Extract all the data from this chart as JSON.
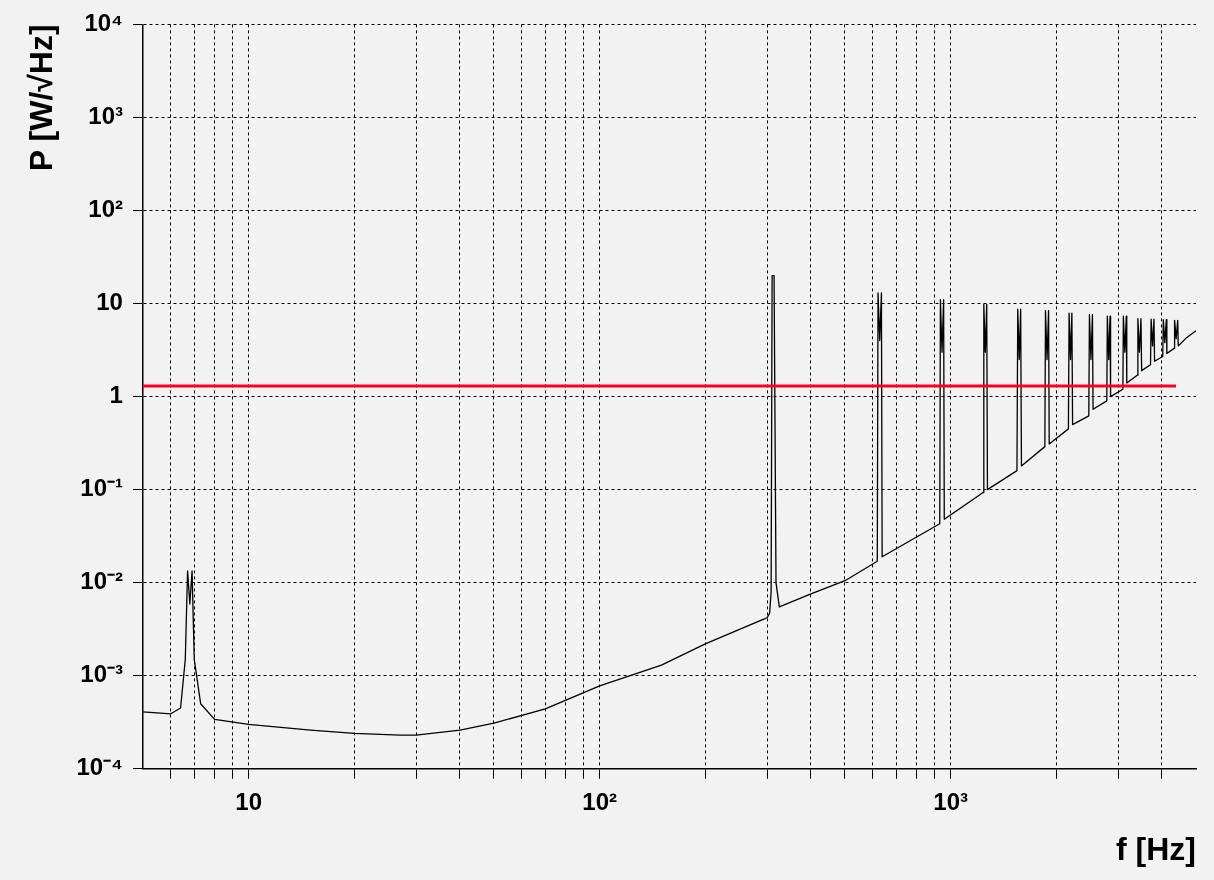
{
  "chart_data": {
    "type": "line",
    "xlabel": "f [Hz]",
    "ylabel": "P [W/√Hz]",
    "log": "xy",
    "grid": true,
    "legend": false,
    "marker": "none",
    "line_style": "solid",
    "xlim": [
      5,
      5000
    ],
    "ylim": [
      0.0001,
      10000
    ],
    "xticks": [
      {
        "value": 6,
        "label": null
      },
      {
        "value": 7,
        "label": null
      },
      {
        "value": 8,
        "label": null
      },
      {
        "value": 9,
        "label": null
      },
      {
        "value": 10,
        "label": "10"
      },
      {
        "value": 20,
        "label": null
      },
      {
        "value": 30,
        "label": null
      },
      {
        "value": 40,
        "label": null
      },
      {
        "value": 50,
        "label": null
      },
      {
        "value": 60,
        "label": null
      },
      {
        "value": 70,
        "label": null
      },
      {
        "value": 80,
        "label": null
      },
      {
        "value": 90,
        "label": null
      },
      {
        "value": 100,
        "label": "10²"
      },
      {
        "value": 200,
        "label": null
      },
      {
        "value": 300,
        "label": null
      },
      {
        "value": 400,
        "label": null
      },
      {
        "value": 500,
        "label": null
      },
      {
        "value": 600,
        "label": null
      },
      {
        "value": 700,
        "label": null
      },
      {
        "value": 800,
        "label": null
      },
      {
        "value": 900,
        "label": null
      },
      {
        "value": 1000,
        "label": "10³"
      },
      {
        "value": 2000,
        "label": null
      },
      {
        "value": 3000,
        "label": null
      },
      {
        "value": 4000,
        "label": null
      }
    ],
    "yticks": [
      {
        "value": 0.0001,
        "label": "10⁻⁴"
      },
      {
        "value": 0.001,
        "label": "10⁻³"
      },
      {
        "value": 0.01,
        "label": "10⁻²"
      },
      {
        "value": 0.1,
        "label": "10⁻¹"
      },
      1,
      10,
      {
        "value": 100,
        "label": "10²"
      },
      {
        "value": 1000,
        "label": "10³"
      },
      {
        "value": 10000,
        "label": "10⁴"
      }
    ],
    "ref_lines": [
      {
        "axis": "y",
        "value": 1.3,
        "color": "#ff0022"
      }
    ],
    "series": [
      {
        "color": "#000000",
        "x": [
          5,
          6,
          6.4,
          6.6,
          6.7,
          6.8,
          6.9,
          7.0,
          7.3,
          8,
          10,
          15,
          20,
          27,
          30,
          40,
          50,
          70,
          100,
          150,
          200,
          300,
          305,
          308,
          310,
          314,
          318,
          325,
          400,
          500,
          618,
          621,
          628,
          635,
          638,
          931,
          935,
          945,
          955,
          959,
          1237,
          1243,
          1255,
          1267,
          1273,
          1545,
          1553,
          1568,
          1583,
          1591,
          1855,
          1863,
          1882,
          1901,
          1909,
          2165,
          2175,
          2195,
          2215,
          2225,
          2475,
          2485,
          2510,
          2535,
          2545,
          2785,
          2795,
          2820,
          2845,
          2855,
          3095,
          3105,
          3135,
          3165,
          3175,
          3400,
          3415,
          3450,
          3485,
          3500,
          3710,
          3725,
          3760,
          3795,
          3810,
          4020,
          4035,
          4075,
          4115,
          4130,
          4330,
          4345,
          4390,
          4435,
          4450,
          4700,
          5000
        ],
        "values": [
          0.00041,
          0.00039,
          0.00045,
          0.0015,
          0.0134,
          0.0059,
          0.0134,
          0.0015,
          0.0005,
          0.00034,
          0.0003,
          0.00026,
          0.00024,
          0.00023,
          0.00023,
          0.00026,
          0.00031,
          0.00044,
          0.00078,
          0.0013,
          0.0022,
          0.0042,
          0.0047,
          0.008,
          20,
          20,
          0.01,
          0.0055,
          0.0076,
          0.0105,
          0.017,
          13,
          4,
          13,
          0.019,
          0.043,
          11,
          3,
          11,
          0.048,
          0.093,
          9.8,
          3,
          9.8,
          0.1,
          0.16,
          8.7,
          2.5,
          8.7,
          0.18,
          0.29,
          8.4,
          2.5,
          8.4,
          0.31,
          0.45,
          7.9,
          2.5,
          7.9,
          0.5,
          0.62,
          7.6,
          2.5,
          7.6,
          0.73,
          0.9,
          7.3,
          2.5,
          7.3,
          1,
          1.2,
          7.3,
          3,
          7.3,
          1.4,
          1.7,
          6.9,
          3,
          6.9,
          1.9,
          2.2,
          6.8,
          3.5,
          6.8,
          2.4,
          2.7,
          6.7,
          3.8,
          6.7,
          2.9,
          3.3,
          6.6,
          4.2,
          6.6,
          3.5,
          4.3,
          5.1
        ]
      }
    ]
  }
}
